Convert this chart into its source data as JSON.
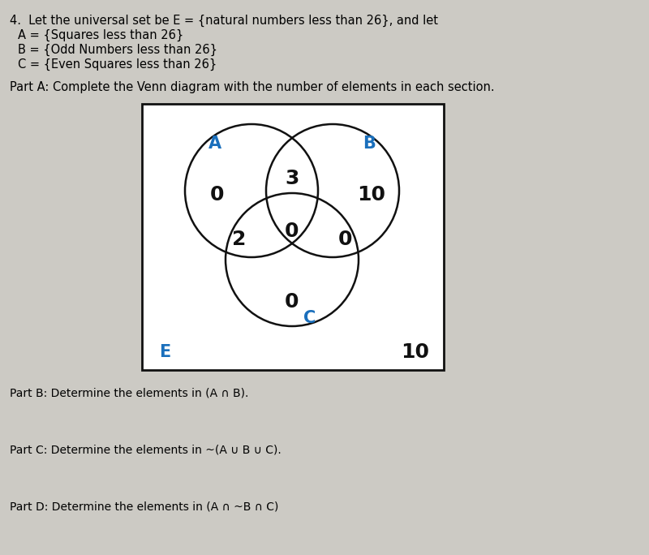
{
  "bg_color": "#cccac4",
  "title_line": "4.  Let the universal set be E = {natural numbers less than 26}, and let",
  "set_A_line": "     A = {Squares less than 26}",
  "set_B_line": "     B = {Odd Numbers less than 26}",
  "set_C_line": "     C = {Even Squares less than 26}",
  "part_A_label": "Part A: Complete the Venn diagram with the number of elements in each section.",
  "part_B_label": "Part B: Determine the elements in (A ∩ B).",
  "part_C_label": "Part C: Determine the elements in ~(A ∪ B ∪ C).",
  "part_D_label": "Part D: Determine the elements in (A ∩ ~B ∩ C)",
  "label_A": "A",
  "label_B": "B",
  "label_C": "C",
  "label_E": "E",
  "label_color": "#1a6fbc",
  "region_only_A": "0",
  "region_only_B": "10",
  "region_A_B": "3",
  "region_A_C": "2",
  "region_B_C": "0",
  "region_A_B_C": "0",
  "region_only_C": "0",
  "region_outside": "10",
  "number_color": "#111111",
  "circle_edge_color": "#111111",
  "box_edge_color": "#111111",
  "box_fill_color": "#ffffff"
}
